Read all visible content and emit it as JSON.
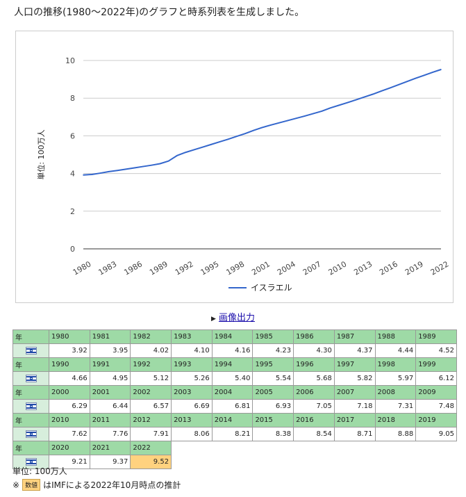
{
  "heading": "人口の推移(1980～2022年)のグラフと時系列表を生成しました。",
  "image_link_label": "画像出力",
  "table": {
    "year_header": "年",
    "rows": [
      {
        "years": [
          "1980",
          "1981",
          "1982",
          "1983",
          "1984",
          "1985",
          "1986",
          "1987",
          "1988",
          "1989"
        ],
        "values": [
          "3.92",
          "3.95",
          "4.02",
          "4.10",
          "4.16",
          "4.23",
          "4.30",
          "4.37",
          "4.44",
          "4.52"
        ]
      },
      {
        "years": [
          "1990",
          "1991",
          "1992",
          "1993",
          "1994",
          "1995",
          "1996",
          "1997",
          "1998",
          "1999"
        ],
        "values": [
          "4.66",
          "4.95",
          "5.12",
          "5.26",
          "5.40",
          "5.54",
          "5.68",
          "5.82",
          "5.97",
          "6.12"
        ]
      },
      {
        "years": [
          "2000",
          "2001",
          "2002",
          "2003",
          "2004",
          "2005",
          "2006",
          "2007",
          "2008",
          "2009"
        ],
        "values": [
          "6.29",
          "6.44",
          "6.57",
          "6.69",
          "6.81",
          "6.93",
          "7.05",
          "7.18",
          "7.31",
          "7.48"
        ]
      },
      {
        "years": [
          "2010",
          "2011",
          "2012",
          "2013",
          "2014",
          "2015",
          "2016",
          "2017",
          "2018",
          "2019"
        ],
        "values": [
          "7.62",
          "7.76",
          "7.91",
          "8.06",
          "8.21",
          "8.38",
          "8.54",
          "8.71",
          "8.88",
          "9.05"
        ]
      },
      {
        "years": [
          "2020",
          "2021",
          "2022"
        ],
        "values": [
          "9.21",
          "9.37",
          "9.52"
        ]
      }
    ],
    "estimate_year": "2022",
    "estimate_color": "#ffd27f",
    "flag_icon": "israel-flag-icon"
  },
  "unit_note": "単位: 100万人",
  "estimate_note": {
    "mark": "※",
    "badge": "数値",
    "text": "はIMFによる2022年10月時点の推計"
  },
  "chart_data": {
    "type": "line",
    "title": "",
    "xlabel": "",
    "ylabel": "単位: 100万人",
    "ylim": [
      0,
      10
    ],
    "yticks": [
      "0",
      "2",
      "4",
      "6",
      "8",
      "10"
    ],
    "x": [
      1980,
      1981,
      1982,
      1983,
      1984,
      1985,
      1986,
      1987,
      1988,
      1989,
      1990,
      1991,
      1992,
      1993,
      1994,
      1995,
      1996,
      1997,
      1998,
      1999,
      2000,
      2001,
      2002,
      2003,
      2004,
      2005,
      2006,
      2007,
      2008,
      2009,
      2010,
      2011,
      2012,
      2013,
      2014,
      2015,
      2016,
      2017,
      2018,
      2019,
      2020,
      2021,
      2022
    ],
    "xticks": [
      "1980",
      "1983",
      "1986",
      "1989",
      "1992",
      "1995",
      "1998",
      "2001",
      "2004",
      "2007",
      "2010",
      "2013",
      "2016",
      "2019",
      "2022"
    ],
    "grid": true,
    "legend_position": "bottom",
    "series": [
      {
        "name": "イスラエル",
        "color": "#3366cc",
        "values": [
          3.92,
          3.95,
          4.02,
          4.1,
          4.16,
          4.23,
          4.3,
          4.37,
          4.44,
          4.52,
          4.66,
          4.95,
          5.12,
          5.26,
          5.4,
          5.54,
          5.68,
          5.82,
          5.97,
          6.12,
          6.29,
          6.44,
          6.57,
          6.69,
          6.81,
          6.93,
          7.05,
          7.18,
          7.31,
          7.48,
          7.62,
          7.76,
          7.91,
          8.06,
          8.21,
          8.38,
          8.54,
          8.71,
          8.88,
          9.05,
          9.21,
          9.37,
          9.52
        ]
      }
    ]
  }
}
